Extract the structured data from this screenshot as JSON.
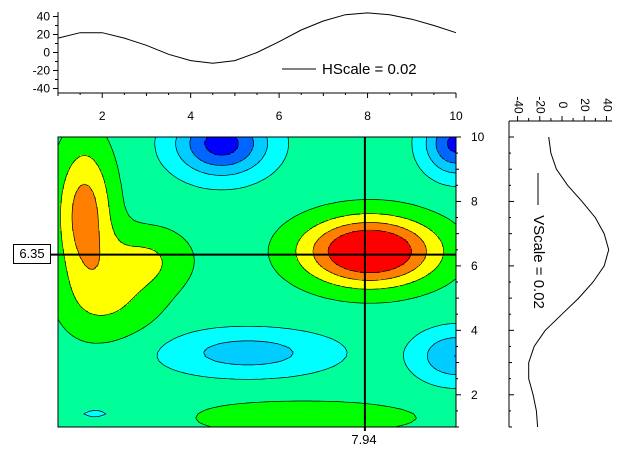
{
  "chart_data": [
    {
      "id": "horizontal-profile",
      "type": "line",
      "legend": "HScale = 0.02",
      "xlim": [
        1,
        10
      ],
      "ylim": [
        -45,
        45
      ],
      "y_ticks": [
        40,
        20,
        0,
        -20,
        -40
      ],
      "y_tick_labels": [
        "40",
        "20",
        "0",
        "-20",
        "-40"
      ],
      "x_ticks": [
        2,
        4,
        6,
        8,
        10
      ],
      "x_tick_labels": [
        "2",
        "4",
        "6",
        "8",
        "10"
      ],
      "x": [
        1.0,
        1.5,
        2.0,
        2.5,
        3.0,
        3.5,
        4.0,
        4.5,
        5.0,
        5.5,
        6.0,
        6.5,
        7.0,
        7.5,
        8.0,
        8.5,
        9.0,
        9.5,
        10.0
      ],
      "y": [
        16,
        22,
        22,
        16,
        8,
        -2,
        -9,
        -12,
        -9,
        0,
        12,
        25,
        35,
        42,
        44,
        42,
        37,
        30,
        22
      ]
    },
    {
      "id": "vertical-profile",
      "type": "line",
      "legend": "VScale = 0.02",
      "ylim": [
        1,
        10
      ],
      "xlim": [
        -45,
        45
      ],
      "x_ticks": [
        40,
        20,
        0,
        -20,
        -40
      ],
      "x_tick_labels": [
        "40",
        "20",
        "0",
        "-20",
        "-40"
      ],
      "y": [
        1.0,
        1.5,
        2.0,
        2.5,
        3.0,
        3.5,
        4.0,
        4.5,
        5.0,
        5.5,
        6.0,
        6.5,
        7.0,
        7.5,
        8.0,
        8.5,
        9.0,
        9.5,
        10.0
      ],
      "x": [
        -22,
        -23,
        -26,
        -30,
        -30,
        -25,
        -15,
        0,
        15,
        28,
        38,
        42,
        38,
        30,
        18,
        5,
        -5,
        -10,
        -12
      ]
    },
    {
      "id": "contour-map",
      "type": "heatmap",
      "xlim": [
        1,
        10
      ],
      "ylim": [
        1,
        10
      ],
      "x_ticks": [
        2,
        4,
        6,
        8,
        10
      ],
      "x_tick_labels": [
        "2",
        "4",
        "6",
        "8",
        "10"
      ],
      "y_ticks": [
        2,
        4,
        6,
        8,
        10
      ],
      "y_tick_labels": [
        "2",
        "4",
        "6",
        "8",
        "10"
      ],
      "levels": [
        -40,
        -30,
        -20,
        -10,
        0,
        10,
        20,
        30
      ],
      "level_colors": [
        "#0000ff",
        "#0066ff",
        "#00ccff",
        "#00ffff",
        "#00ff99",
        "#00ff00",
        "#ffff00",
        "#ff8000",
        "#ff0000"
      ],
      "cursor": {
        "x": 7.94,
        "y": 6.35,
        "x_label": "7.94",
        "y_label": "6.35"
      }
    }
  ]
}
